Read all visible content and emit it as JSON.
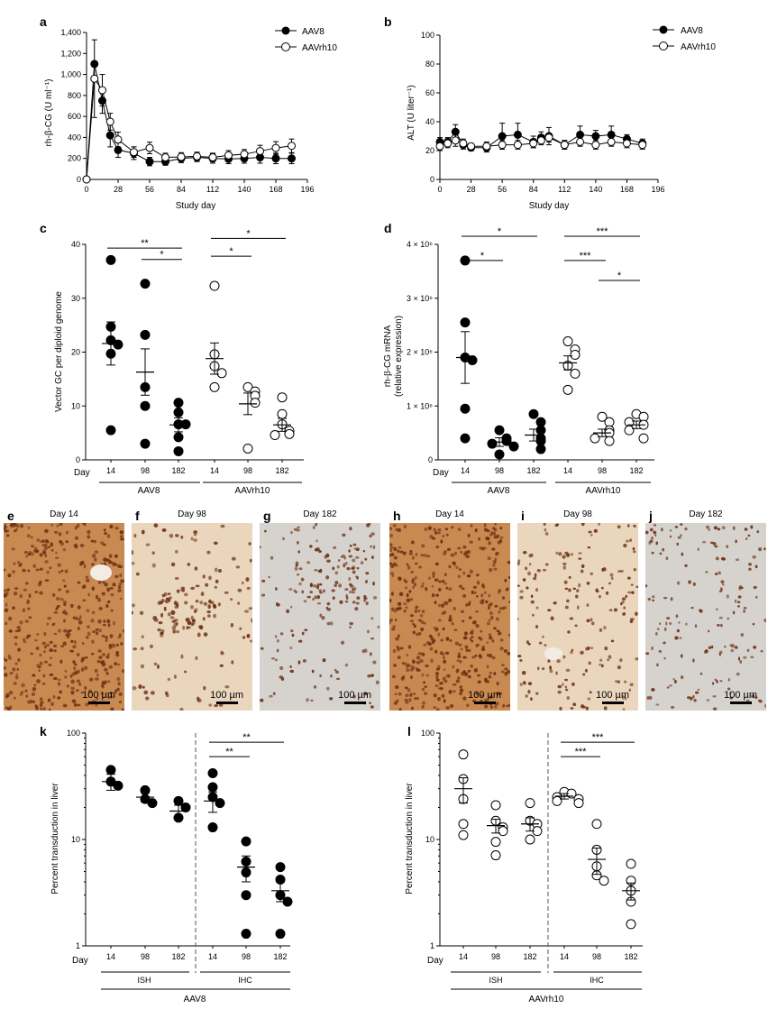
{
  "colors": {
    "ink": "#000000",
    "open": "#ffffff",
    "tissue_dense": "#c98a52",
    "tissue_light": "#ead6bd",
    "tissue_gray": "#d6d3cf",
    "nuclei": "#6e3214",
    "vessel": "#f2ece4"
  },
  "panel_a": {
    "label": "a",
    "xlabel": "Study day",
    "ylabel": "rh-β-CG (U ml⁻¹)",
    "xticks": [
      0,
      28,
      56,
      84,
      112,
      140,
      168,
      196
    ],
    "yticks": [
      "0",
      "200",
      "400",
      "600",
      "800",
      "1,000",
      "1,200",
      "1,400"
    ],
    "legend": [
      "AAV8",
      "AAVrh10"
    ]
  },
  "panel_b": {
    "label": "b",
    "xlabel": "Study day",
    "ylabel": "ALT (U liter⁻¹)",
    "xticks": [
      0,
      28,
      56,
      84,
      112,
      140,
      168,
      196
    ],
    "yticks": [
      "0",
      "20",
      "40",
      "60",
      "80",
      "100"
    ],
    "legend": [
      "AAV8",
      "AAVrh10"
    ]
  },
  "panel_c": {
    "label": "c",
    "ylabel": "Vector GC per diploid genome",
    "yticks": [
      "0",
      "10",
      "20",
      "30",
      "40"
    ],
    "day_label": "Day",
    "categories": [
      "14",
      "98",
      "182",
      "14",
      "98",
      "182"
    ],
    "groups": [
      "AAV8",
      "AAVrh10"
    ],
    "sig": [
      "**",
      "*",
      "*",
      "*"
    ]
  },
  "panel_d": {
    "label": "d",
    "ylabel": "rh-β-CG mRNA",
    "ylabel2": "(relative expression)",
    "yticks": [
      "0",
      "1 × 10⁶",
      "2 × 10⁶",
      "3 × 10⁶",
      "4 × 10⁶"
    ],
    "day_label": "Day",
    "categories": [
      "14",
      "98",
      "182",
      "14",
      "98",
      "182"
    ],
    "groups": [
      "AAV8",
      "AAVrh10"
    ],
    "sig": [
      "*",
      "*",
      "***",
      "***",
      "*"
    ]
  },
  "micrographs": [
    {
      "label": "e",
      "day": "Day 14",
      "scale": "100 µm"
    },
    {
      "label": "f",
      "day": "Day 98",
      "scale": "100 µm"
    },
    {
      "label": "g",
      "day": "Day 182",
      "scale": "100 µm"
    },
    {
      "label": "h",
      "day": "Day 14",
      "scale": "100 µm"
    },
    {
      "label": "i",
      "day": "Day 98",
      "scale": "100 µm"
    },
    {
      "label": "j",
      "day": "Day 182",
      "scale": "100 µm"
    }
  ],
  "panel_k": {
    "label": "k",
    "ylabel": "Percent transduction in liver",
    "yticks": [
      "1",
      "10",
      "100"
    ],
    "day_label": "Day",
    "categories": [
      "14",
      "98",
      "182",
      "14",
      "98",
      "182"
    ],
    "methods": [
      "ISH",
      "IHC"
    ],
    "group": "AAV8",
    "sig": [
      "**",
      "**"
    ]
  },
  "panel_l": {
    "label": "l",
    "ylabel": "Percent transduction in liver",
    "yticks": [
      "1",
      "10",
      "100"
    ],
    "day_label": "Day",
    "categories": [
      "14",
      "98",
      "182",
      "14",
      "98",
      "182"
    ],
    "methods": [
      "ISH",
      "IHC"
    ],
    "group": "AAVrh10",
    "sig": [
      "***",
      "***"
    ]
  },
  "chart_data": [
    {
      "panel": "a",
      "type": "line",
      "xlabel": "Study day",
      "ylabel": "rh-β-CG (U ml⁻¹)",
      "xlim": [
        0,
        196
      ],
      "ylim": [
        0,
        1400
      ],
      "series": [
        {
          "name": "AAV8",
          "marker": "filled",
          "x": [
            0,
            7,
            14,
            21,
            28,
            42,
            56,
            70,
            84,
            98,
            112,
            126,
            140,
            154,
            168,
            182
          ],
          "y": [
            0,
            1100,
            750,
            420,
            280,
            250,
            170,
            170,
            200,
            210,
            200,
            195,
            200,
            210,
            200,
            200
          ],
          "err": [
            0,
            0,
            120,
            110,
            70,
            60,
            40,
            35,
            40,
            40,
            45,
            45,
            45,
            55,
            50,
            50
          ]
        },
        {
          "name": "AAVrh10",
          "marker": "open",
          "x": [
            0,
            7,
            14,
            21,
            28,
            42,
            56,
            70,
            84,
            98,
            112,
            126,
            140,
            154,
            168,
            182
          ],
          "y": [
            0,
            960,
            850,
            550,
            380,
            260,
            300,
            210,
            215,
            220,
            210,
            230,
            240,
            270,
            300,
            320
          ],
          "err": [
            0,
            370,
            150,
            80,
            70,
            50,
            55,
            40,
            40,
            40,
            40,
            45,
            45,
            55,
            60,
            65
          ]
        }
      ]
    },
    {
      "panel": "b",
      "type": "line",
      "xlabel": "Study day",
      "ylabel": "ALT (U liter⁻¹)",
      "xlim": [
        0,
        196
      ],
      "ylim": [
        0,
        100
      ],
      "series": [
        {
          "name": "AAV8",
          "marker": "filled",
          "x": [
            0,
            7,
            14,
            21,
            28,
            42,
            56,
            70,
            84,
            91,
            98,
            112,
            126,
            140,
            154,
            168,
            182
          ],
          "y": [
            26,
            26,
            33,
            24,
            22,
            22,
            30,
            31,
            26,
            29,
            30,
            24,
            31,
            30,
            31,
            28,
            25
          ],
          "err": [
            3,
            3,
            5,
            3,
            2,
            3,
            9,
            8,
            4,
            4,
            6,
            3,
            6,
            4,
            6,
            3,
            3
          ]
        },
        {
          "name": "AAVrh10",
          "marker": "open",
          "x": [
            0,
            7,
            14,
            21,
            28,
            42,
            56,
            70,
            84,
            91,
            98,
            112,
            126,
            140,
            154,
            168,
            182
          ],
          "y": [
            23,
            25,
            27,
            25,
            23,
            23,
            24,
            24,
            25,
            27,
            29,
            24,
            26,
            24,
            26,
            25,
            24
          ],
          "err": [
            3,
            3,
            4,
            3,
            2,
            3,
            3,
            3,
            3,
            3,
            3,
            3,
            3,
            3,
            3,
            3,
            3
          ]
        }
      ]
    },
    {
      "panel": "c",
      "type": "scatter",
      "ylabel": "Vector GC per diploid genome",
      "ylim": [
        0,
        40
      ],
      "groups": [
        {
          "vector": "AAV8",
          "day": "14",
          "marker": "filled",
          "points": [
            37.1,
            24.7,
            22.2,
            21.4,
            19.7,
            5.5
          ],
          "mean": 21.6,
          "sem": 4.0
        },
        {
          "vector": "AAV8",
          "day": "98",
          "marker": "filled",
          "points": [
            32.7,
            23.2,
            13.5,
            10.0,
            3.0
          ],
          "mean": 16.3,
          "sem": 4.3
        },
        {
          "vector": "AAV8",
          "day": "182",
          "marker": "filled",
          "points": [
            10.6,
            8.8,
            6.6,
            6.6,
            4.2,
            1.6
          ],
          "mean": 6.5,
          "sem": 1.3
        },
        {
          "vector": "AAVrh10",
          "day": "14",
          "marker": "open",
          "points": [
            32.3,
            19.6,
            17.4,
            16.1,
            13.5
          ],
          "mean": 18.8,
          "sem": 2.9
        },
        {
          "vector": "AAVrh10",
          "day": "98",
          "marker": "open",
          "points": [
            13.5,
            12.7,
            11.9,
            10.6,
            2.1
          ],
          "mean": 10.4,
          "sem": 2.0
        },
        {
          "vector": "AAVrh10",
          "day": "182",
          "marker": "open",
          "points": [
            11.6,
            8.5,
            6.6,
            5.4,
            4.8,
            4.6
          ],
          "mean": 6.5,
          "sem": 1.2
        }
      ],
      "comparisons": [
        {
          "from": 0,
          "to": 2,
          "label": "**",
          "y": 39.3
        },
        {
          "from": 1,
          "to": 2,
          "label": "*",
          "y": 37.2
        },
        {
          "from": 3,
          "to": 5,
          "label": "*",
          "y": 41.1
        },
        {
          "from": 3,
          "to": 4,
          "label": "*",
          "y": 37.8
        }
      ]
    },
    {
      "panel": "d",
      "type": "scatter",
      "ylabel": "rh-β-CG mRNA (relative expression)",
      "ylim": [
        0,
        4000000
      ],
      "groups": [
        {
          "vector": "AAV8",
          "day": "14",
          "marker": "filled",
          "points": [
            3700000,
            2550000,
            1900000,
            1850000,
            950000,
            400000
          ],
          "mean": 1900000,
          "sem": 480000
        },
        {
          "vector": "AAV8",
          "day": "98",
          "marker": "filled",
          "points": [
            550000,
            400000,
            350000,
            300000,
            250000,
            100000
          ],
          "mean": 330000,
          "sem": 80000
        },
        {
          "vector": "AAV8",
          "day": "182",
          "marker": "filled",
          "points": [
            850000,
            700000,
            550000,
            400000,
            350000,
            200000
          ],
          "mean": 460000,
          "sem": 110000
        },
        {
          "vector": "AAVrh10",
          "day": "14",
          "marker": "open",
          "points": [
            2200000,
            2050000,
            1950000,
            1750000,
            1600000,
            1300000
          ],
          "mean": 1800000,
          "sem": 130000
        },
        {
          "vector": "AAVrh10",
          "day": "98",
          "marker": "open",
          "points": [
            800000,
            700000,
            550000,
            500000,
            400000,
            350000
          ],
          "mean": 500000,
          "sem": 70000
        },
        {
          "vector": "AAVrh10",
          "day": "182",
          "marker": "open",
          "points": [
            850000,
            800000,
            700000,
            650000,
            550000,
            400000
          ],
          "mean": 650000,
          "sem": 70000
        }
      ],
      "comparisons": [
        {
          "from": 0,
          "to": 2,
          "label": "*",
          "y": 4150000
        },
        {
          "from": 0,
          "to": 1,
          "label": "*",
          "y": 3700000
        },
        {
          "from": 3,
          "to": 5,
          "label": "***",
          "y": 4150000
        },
        {
          "from": 3,
          "to": 4,
          "label": "***",
          "y": 3700000
        },
        {
          "from": 4,
          "to": 5,
          "label": "*",
          "y": 3330000
        }
      ]
    },
    {
      "panel": "k",
      "type": "scatter",
      "yscale": "log",
      "ylabel": "Percent transduction in liver",
      "ylim": [
        1,
        100
      ],
      "groups": [
        {
          "method": "ISH",
          "day": "14",
          "marker": "filled",
          "points": [
            45,
            35,
            32
          ],
          "mean": 35,
          "sem": 6
        },
        {
          "method": "ISH",
          "day": "98",
          "marker": "filled",
          "points": [
            29,
            24,
            22
          ],
          "mean": 25,
          "sem": 2.5
        },
        {
          "method": "ISH",
          "day": "182",
          "marker": "filled",
          "points": [
            23,
            20,
            16
          ],
          "mean": 18.5,
          "sem": 2.5
        },
        {
          "method": "IHC",
          "day": "14",
          "marker": "filled",
          "points": [
            42,
            31,
            25,
            22,
            13
          ],
          "mean": 23,
          "sem": 5
        },
        {
          "method": "IHC",
          "day": "98",
          "marker": "filled",
          "points": [
            9.6,
            6.2,
            4.9,
            3.0,
            1.3
          ],
          "mean": 5.5,
          "sem": 1.5
        },
        {
          "method": "IHC",
          "day": "182",
          "marker": "filled",
          "points": [
            5.5,
            4.2,
            3.0,
            2.6,
            1.3
          ],
          "mean": 3.3,
          "sem": 0.7
        }
      ],
      "comparisons": [
        {
          "from": 3,
          "to": 5,
          "label": "**",
          "y": 82
        },
        {
          "from": 3,
          "to": 4,
          "label": "**",
          "y": 60
        }
      ]
    },
    {
      "panel": "l",
      "type": "scatter",
      "yscale": "log",
      "ylabel": "Percent transduction in liver",
      "ylim": [
        1,
        100
      ],
      "groups": [
        {
          "method": "ISH",
          "day": "14",
          "marker": "open",
          "points": [
            63,
            37,
            24,
            14,
            11
          ],
          "mean": 30,
          "sem": 8
        },
        {
          "method": "ISH",
          "day": "98",
          "marker": "open",
          "points": [
            21,
            15,
            13,
            12,
            9.5,
            7.1
          ],
          "mean": 13.5,
          "sem": 2
        },
        {
          "method": "ISH",
          "day": "182",
          "marker": "open",
          "points": [
            22,
            15,
            14,
            12,
            10
          ],
          "mean": 14,
          "sem": 2
        },
        {
          "method": "IHC",
          "day": "14",
          "marker": "open",
          "points": [
            28,
            27,
            25,
            24,
            23,
            22
          ],
          "mean": 25.5,
          "sem": 1.5
        },
        {
          "method": "IHC",
          "day": "98",
          "marker": "open",
          "points": [
            14,
            8,
            5.6,
            4.6,
            4.1
          ],
          "mean": 6.5,
          "sem": 1.8
        },
        {
          "method": "IHC",
          "day": "182",
          "marker": "open",
          "points": [
            5.9,
            4.1,
            3.3,
            2.6,
            1.6
          ],
          "mean": 3.3,
          "sem": 0.6
        }
      ],
      "comparisons": [
        {
          "from": 3,
          "to": 5,
          "label": "***",
          "y": 82
        },
        {
          "from": 3,
          "to": 4,
          "label": "***",
          "y": 60
        }
      ]
    }
  ]
}
